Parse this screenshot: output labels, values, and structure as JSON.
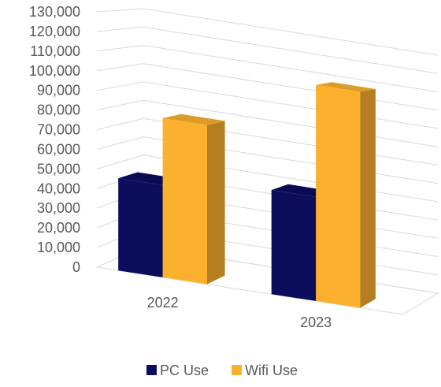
{
  "chart_data": {
    "type": "bar",
    "categories": [
      "2022",
      "2023"
    ],
    "series": [
      {
        "name": "PC Use",
        "values": [
          47000,
          53000
        ],
        "color": "#0d0d5e"
      },
      {
        "name": "Wifi Use",
        "values": [
          81000,
          110000
        ],
        "color": "#fbb02e"
      }
    ],
    "ylim": [
      0,
      130000
    ],
    "yticks": [
      "0",
      "10,000",
      "20,000",
      "30,000",
      "40,000",
      "50,000",
      "60,000",
      "70,000",
      "80,000",
      "90,000",
      "100,000",
      "110,000",
      "120,000",
      "130,000"
    ],
    "grid": true,
    "legend_position": "bottom",
    "style": "3d-column"
  }
}
